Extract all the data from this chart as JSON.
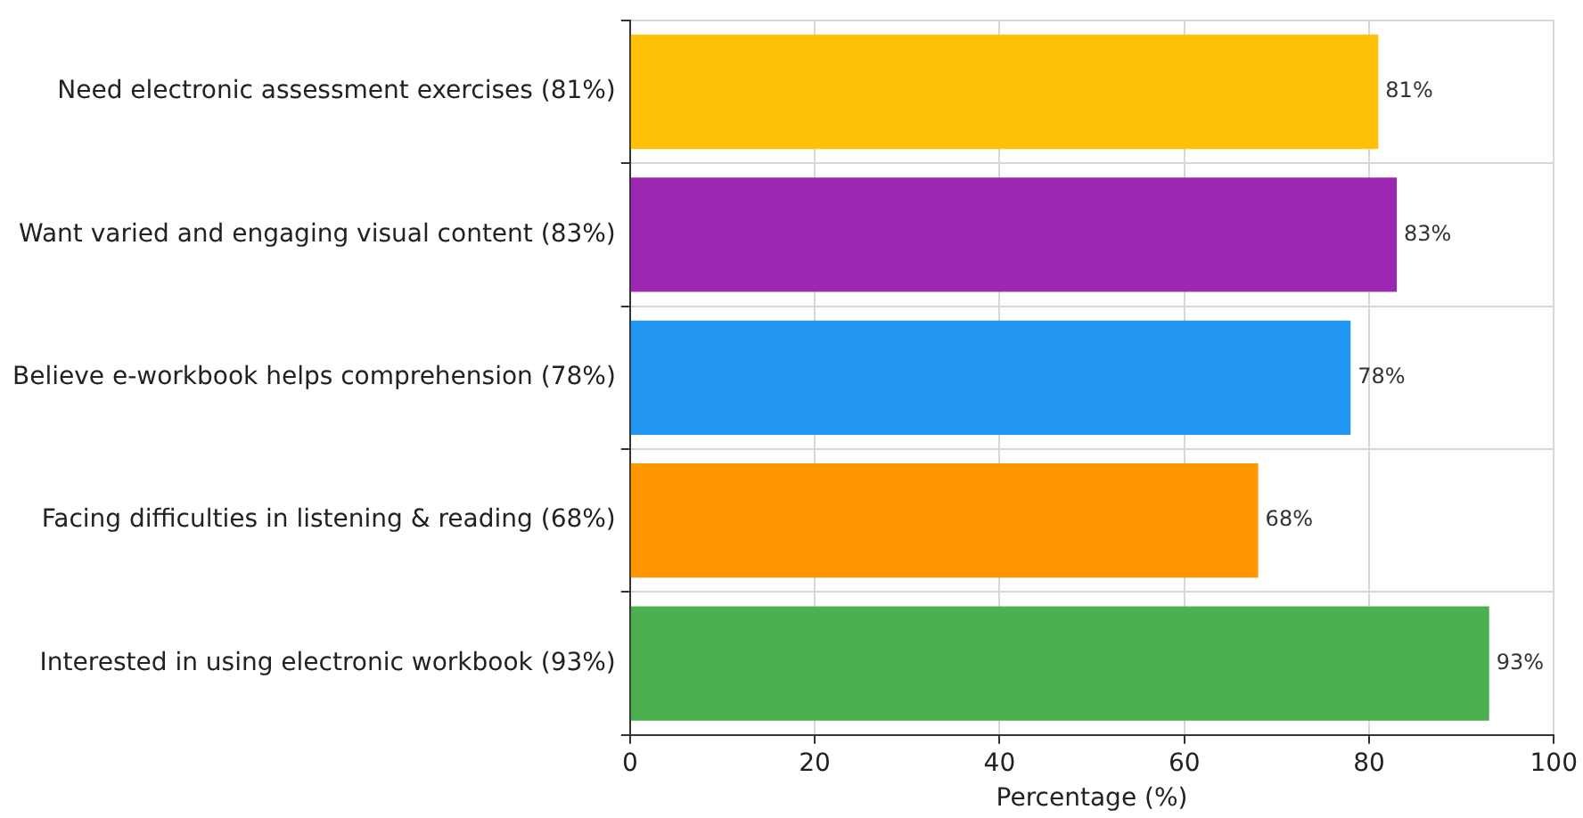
{
  "chart_data": {
    "type": "bar",
    "orientation": "horizontal",
    "xlabel": "Percentage (%)",
    "categories": [
      "Need electronic assessment exercises (81%)",
      "Want varied and engaging visual content (83%)",
      "Believe e-workbook helps comprehension (78%)",
      "Facing difficulties in listening & reading (68%)",
      "Interested in using electronic workbook (93%)"
    ],
    "values": [
      81,
      83,
      78,
      68,
      93
    ],
    "colors": [
      "#ffc107",
      "#9c27b0",
      "#2196f3",
      "#ff9800",
      "#4caf50"
    ],
    "value_labels": [
      "81%",
      "83%",
      "78%",
      "68%",
      "93%"
    ],
    "xlim": [
      0,
      100
    ],
    "xticks": [
      0,
      20,
      40,
      60,
      80,
      100
    ],
    "grid": true,
    "legend": false
  }
}
